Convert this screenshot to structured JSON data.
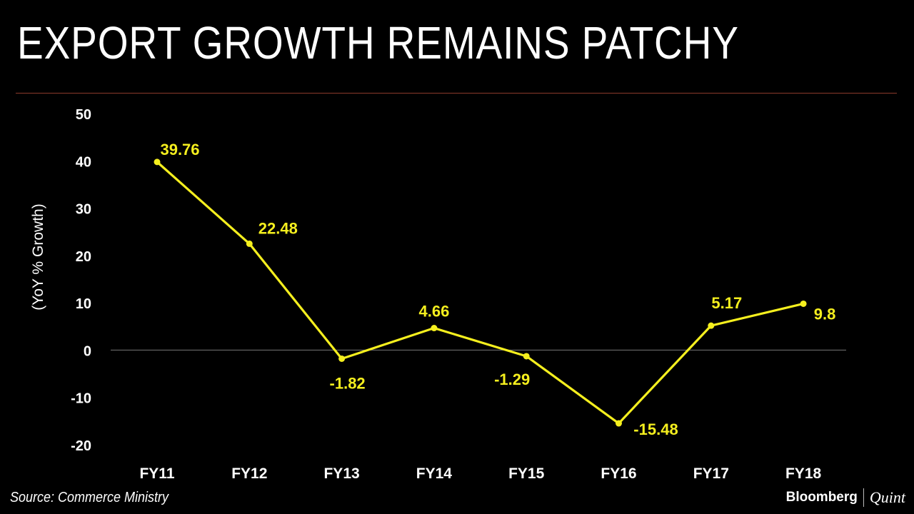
{
  "title": "EXPORT GROWTH REMAINS PATCHY",
  "source": "Source: Commerce Ministry",
  "brand": {
    "primary": "Bloomberg",
    "secondary": "Quint"
  },
  "colors": {
    "line": "#f5ef1e",
    "label": "#f5ef1e",
    "axis_text": "#ffffff",
    "zero_line": "#777777",
    "divider": "#8b3a2b",
    "background": "#000000"
  },
  "chart_data": {
    "type": "line",
    "title": "EXPORT GROWTH REMAINS PATCHY",
    "xlabel": "",
    "ylabel": "(YoY % Growth)",
    "ylim": [
      -20,
      50
    ],
    "yticks": [
      50,
      40,
      30,
      20,
      10,
      0,
      -10,
      -20
    ],
    "grid": false,
    "categories": [
      "FY11",
      "FY12",
      "FY13",
      "FY14",
      "FY15",
      "FY16",
      "FY17",
      "FY18"
    ],
    "series": [
      {
        "values": [
          39.76,
          22.48,
          -1.82,
          4.66,
          -1.29,
          -15.48,
          5.17,
          9.8
        ],
        "data_labels": [
          "39.76",
          "22.48",
          "-1.82",
          "4.66",
          "-1.29",
          "-15.48",
          "5.17",
          "9.8"
        ]
      }
    ]
  }
}
